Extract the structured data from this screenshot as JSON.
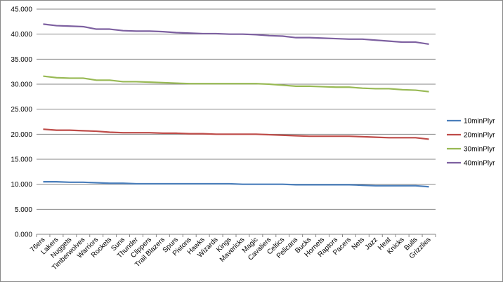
{
  "chart_data": {
    "type": "line",
    "categories": [
      "76ers",
      "Lakers",
      "Nuggets",
      "Timberwolves",
      "Warriors",
      "Rockets",
      "Suns",
      "Thunder",
      "Clippers",
      "Trail Blazers",
      "Spurs",
      "Pistons",
      "Hawks",
      "Wizards",
      "Kings",
      "Mavericks",
      "Magic",
      "Cavaliers",
      "Celtics",
      "Pelicans",
      "Bucks",
      "Hornets",
      "Raptors",
      "Pacers",
      "Nets",
      "Jazz",
      "Heat",
      "Knicks",
      "Bulls",
      "Grizzlies"
    ],
    "series": [
      {
        "name": "10minPlyr",
        "color": "#4a7ebb",
        "values": [
          10.5,
          10.5,
          10.4,
          10.4,
          10.3,
          10.2,
          10.2,
          10.1,
          10.1,
          10.1,
          10.1,
          10.1,
          10.1,
          10.1,
          10.1,
          10.0,
          10.0,
          10.0,
          10.0,
          9.9,
          9.9,
          9.9,
          9.9,
          9.9,
          9.8,
          9.7,
          9.7,
          9.7,
          9.7,
          9.5
        ]
      },
      {
        "name": "20minPlyr",
        "color": "#be4b48",
        "values": [
          21.0,
          20.8,
          20.8,
          20.7,
          20.6,
          20.4,
          20.3,
          20.3,
          20.3,
          20.2,
          20.2,
          20.1,
          20.1,
          20.0,
          20.0,
          20.0,
          20.0,
          19.9,
          19.8,
          19.7,
          19.6,
          19.6,
          19.6,
          19.6,
          19.5,
          19.4,
          19.3,
          19.3,
          19.3,
          19.0
        ]
      },
      {
        "name": "30minPlyr",
        "color": "#98b954",
        "values": [
          31.6,
          31.3,
          31.2,
          31.2,
          30.8,
          30.8,
          30.5,
          30.5,
          30.4,
          30.3,
          30.2,
          30.1,
          30.1,
          30.1,
          30.1,
          30.1,
          30.1,
          30.0,
          29.8,
          29.6,
          29.6,
          29.5,
          29.4,
          29.4,
          29.2,
          29.1,
          29.1,
          28.9,
          28.8,
          28.5
        ]
      },
      {
        "name": "40minPlyr",
        "color": "#7d60a0",
        "values": [
          42.0,
          41.7,
          41.6,
          41.5,
          41.0,
          41.0,
          40.7,
          40.6,
          40.6,
          40.5,
          40.3,
          40.2,
          40.1,
          40.1,
          40.0,
          40.0,
          39.9,
          39.7,
          39.6,
          39.3,
          39.3,
          39.2,
          39.1,
          39.0,
          39.0,
          38.8,
          38.6,
          38.4,
          38.4,
          38.0
        ]
      }
    ],
    "ylim": [
      0,
      45
    ],
    "yticks": [
      {
        "value": 0,
        "label": "0.000"
      },
      {
        "value": 5,
        "label": "5.000"
      },
      {
        "value": 10,
        "label": "10.000"
      },
      {
        "value": 15,
        "label": "15.000"
      },
      {
        "value": 20,
        "label": "20.000"
      },
      {
        "value": 25,
        "label": "25.000"
      },
      {
        "value": 30,
        "label": "30.000"
      },
      {
        "value": 35,
        "label": "35.000"
      },
      {
        "value": 40,
        "label": "40.000"
      },
      {
        "value": 45,
        "label": "45.000"
      }
    ],
    "grid": true,
    "legend": "right"
  }
}
